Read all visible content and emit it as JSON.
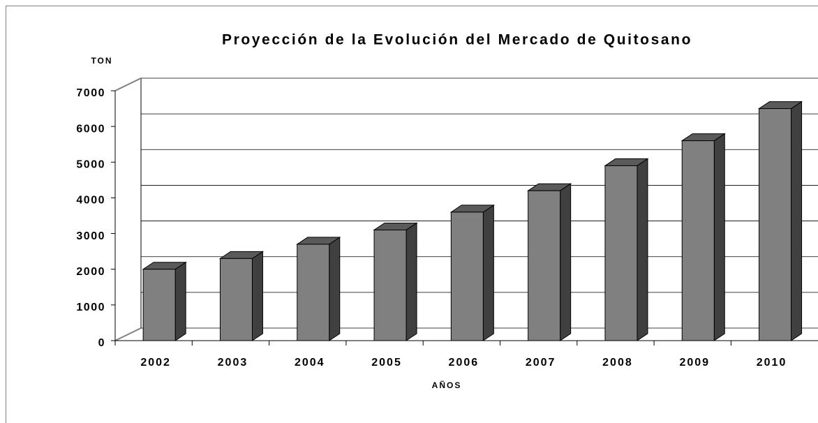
{
  "chart_data": {
    "type": "bar3d",
    "title": "Proyección de la Evolución del Mercado de Quitosano",
    "y_label": "TON",
    "x_label": "AÑOS",
    "categories": [
      "2002",
      "2003",
      "2004",
      "2005",
      "2006",
      "2007",
      "2008",
      "2009",
      "2010"
    ],
    "values": [
      2000,
      2300,
      2700,
      3100,
      3600,
      4200,
      4900,
      5600,
      6500
    ],
    "color": "#808080",
    "ylim": [
      0,
      7000
    ],
    "yticks": [
      0,
      1000,
      2000,
      3000,
      4000,
      5000,
      6000,
      7000
    ],
    "grid": true
  }
}
